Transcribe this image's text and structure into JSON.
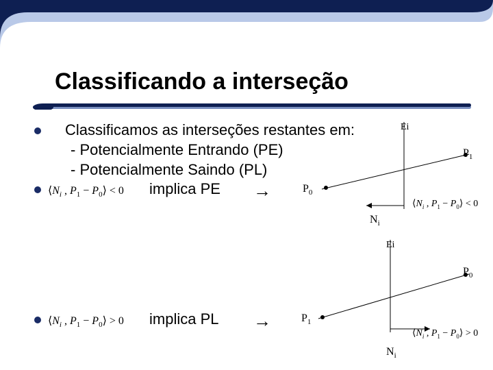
{
  "title": "Classificando a interseção",
  "bullet1_line1": "Classificamos as interseções restantes em:",
  "bullet1_line2": "- Potencialmente Entrando (PE)",
  "bullet1_line3": "- Potencialmente Saindo (PL)",
  "bullet2_text": "implica PE",
  "bullet3_text": "implica PL",
  "arrow_glyph": "→",
  "formula_pe_html": "⟨<i>N<sub>i</sub></i> , <i>P</i><sub>1</sub> − <i>P</i><sub>0</sub>⟩ < 0",
  "formula_pl_html": "⟨<i>N<sub>i</sub></i> , <i>P</i><sub>1</sub> − <i>P</i><sub>0</sub>⟩ > 0",
  "diagram_small_pe_html": "⟨<i>N<sub>i</sub></i> , <i>P</i><sub>1</sub> − <i>P</i><sub>0</sub>⟩ < 0",
  "diagram_small_pl_html": "⟨<i>N<sub>i</sub></i> , <i>P</i><sub>1</sub> − <i>P</i><sub>0</sub>⟩ > 0",
  "label_Ei": "Ei",
  "label_P0": "P",
  "label_P0_sub": "0",
  "label_P1": "P",
  "label_P1_sub": "1",
  "label_Ni": "N",
  "label_Ni_sub": "i",
  "colors": {
    "bullet": "#1a2c66",
    "underline_dark": "#0e1f52",
    "underline_light": "#7a8fc0",
    "corner_dark": "#0e1f52",
    "corner_light": "#b9c9e8",
    "diagram_line": "#000000",
    "background": "#ffffff"
  },
  "fontsizes": {
    "title": 34,
    "body": 22,
    "formula": 16,
    "label": 16,
    "small_formula": 14
  }
}
